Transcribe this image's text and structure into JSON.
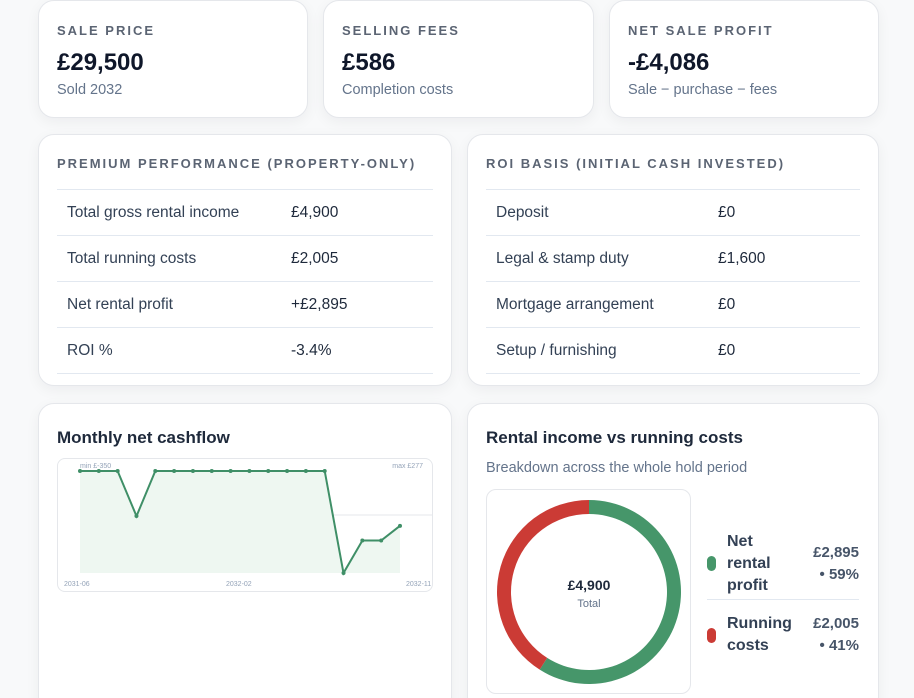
{
  "kpis": [
    {
      "label": "SALE PRICE",
      "value": "£29,500",
      "sub": "Sold 2032"
    },
    {
      "label": "SELLING FEES",
      "value": "£586",
      "sub": "Completion costs"
    },
    {
      "label": "NET SALE PROFIT",
      "value": "-£4,086",
      "sub": "Sale − purchase − fees"
    }
  ],
  "performance": {
    "title": "PREMIUM PERFORMANCE (PROPERTY-ONLY)",
    "rows": [
      {
        "label": "Total gross rental income",
        "value": "£4,900"
      },
      {
        "label": "Total running costs",
        "value": "£2,005"
      },
      {
        "label": "Net rental profit",
        "value": "+£2,895"
      },
      {
        "label": "ROI %",
        "value": "-3.4%"
      }
    ]
  },
  "roi_basis": {
    "title": "ROI BASIS (INITIAL CASH INVESTED)",
    "rows": [
      {
        "label": "Deposit",
        "value": "£0"
      },
      {
        "label": "Legal & stamp duty",
        "value": "£1,600"
      },
      {
        "label": "Mortgage arrangement",
        "value": "£0"
      },
      {
        "label": "Setup / furnishing",
        "value": "£0"
      }
    ]
  },
  "cashflow": {
    "title": "Monthly net cashflow",
    "min_label": "min £-350",
    "max_label": "max £277",
    "x_start": "2031-06",
    "x_mid": "2032-02",
    "x_end": "2032-11",
    "line_color": "#3f8f67",
    "values": [
      277,
      277,
      277,
      0,
      277,
      277,
      277,
      277,
      277,
      277,
      277,
      277,
      277,
      277,
      -350,
      -150,
      -150,
      -60
    ]
  },
  "donut": {
    "title": "Rental income vs running costs",
    "subtitle": "Breakdown across the whole hold period",
    "center_value": "£4,900",
    "center_label": "Total",
    "slices": [
      {
        "line1": "Net",
        "line2": "rental",
        "line3": "profit",
        "value": "£2,895",
        "pct": "• 59%",
        "share": 0.59,
        "color": "#46966a"
      },
      {
        "line1": "Running",
        "line2": "costs",
        "value": "£2,005",
        "pct": "• 41%",
        "share": 0.41,
        "color": "#cb3b35"
      }
    ]
  }
}
